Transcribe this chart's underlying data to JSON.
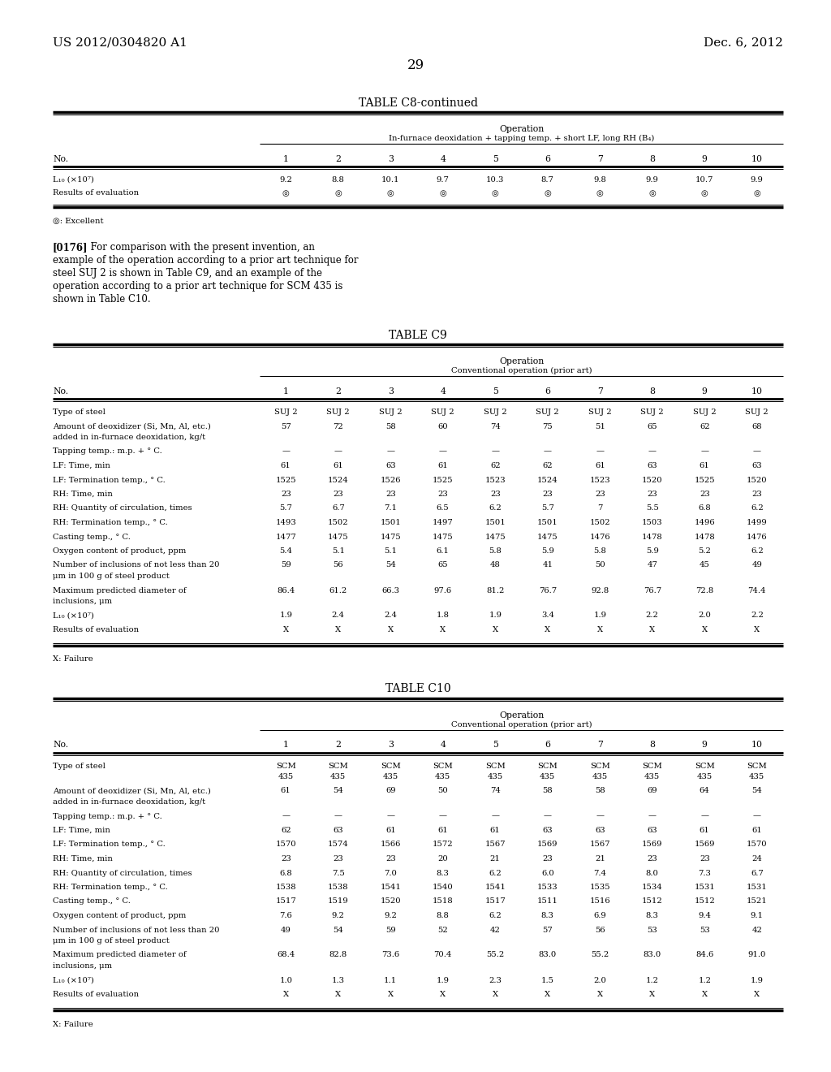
{
  "page_header_left": "US 2012/0304820 A1",
  "page_header_right": "Dec. 6, 2012",
  "page_number": "29",
  "table_c8": {
    "title": "TABLE C8-continued",
    "operation_label": "Operation",
    "operation_sub": "In-furnace deoxidation + tapping temp. + short LF, long RH (B₄)",
    "nos": [
      "1",
      "2",
      "3",
      "4",
      "5",
      "6",
      "7",
      "8",
      "9",
      "10"
    ],
    "rows": [
      {
        "label": "L₁₀ (×10⁷)",
        "values": [
          "9.2",
          "8.8",
          "10.1",
          "9.7",
          "10.3",
          "8.7",
          "9.8",
          "9.9",
          "10.7",
          "9.9"
        ]
      },
      {
        "label": "Results of evaluation",
        "values": [
          "◎",
          "◎",
          "◎",
          "◎",
          "◎",
          "◎",
          "◎",
          "◎",
          "◎",
          "◎"
        ]
      }
    ],
    "footnote": "◎: Excellent"
  },
  "paragraph_lines": [
    {
      "bold": "[0176]",
      "rest": "  For comparison with the present invention, an"
    },
    {
      "bold": "",
      "rest": "example of the operation according to a prior art technique for"
    },
    {
      "bold": "",
      "rest": "steel SUJ 2 is shown in Table C9, and an example of the"
    },
    {
      "bold": "",
      "rest": "operation according to a prior art technique for SCM 435 is"
    },
    {
      "bold": "",
      "rest": "shown in Table C10."
    }
  ],
  "table_c9": {
    "title": "TABLE C9",
    "operation_label": "Operation",
    "operation_sub": "Conventional operation (prior art)",
    "nos": [
      "1",
      "2",
      "3",
      "4",
      "5",
      "6",
      "7",
      "8",
      "9",
      "10"
    ],
    "rows": [
      {
        "label": "Type of steel",
        "values": [
          "SUJ 2",
          "SUJ 2",
          "SUJ 2",
          "SUJ 2",
          "SUJ 2",
          "SUJ 2",
          "SUJ 2",
          "SUJ 2",
          "SUJ 2",
          "SUJ 2"
        ]
      },
      {
        "label": "Amount of deoxidizer (Si, Mn, Al, etc.)\nadded in in-furnace deoxidation, kg/t",
        "values": [
          "57",
          "72",
          "58",
          "60",
          "74",
          "75",
          "51",
          "65",
          "62",
          "68"
        ]
      },
      {
        "label": "Tapping temp.: m.p. + ° C.",
        "values": [
          "—",
          "—",
          "—",
          "—",
          "—",
          "—",
          "—",
          "—",
          "—",
          "—"
        ]
      },
      {
        "label": "LF: Time, min",
        "values": [
          "61",
          "61",
          "63",
          "61",
          "62",
          "62",
          "61",
          "63",
          "61",
          "63"
        ]
      },
      {
        "label": "LF: Termination temp., ° C.",
        "values": [
          "1525",
          "1524",
          "1526",
          "1525",
          "1523",
          "1524",
          "1523",
          "1520",
          "1525",
          "1520"
        ]
      },
      {
        "label": "RH: Time, min",
        "values": [
          "23",
          "23",
          "23",
          "23",
          "23",
          "23",
          "23",
          "23",
          "23",
          "23"
        ]
      },
      {
        "label": "RH: Quantity of circulation, times",
        "values": [
          "5.7",
          "6.7",
          "7.1",
          "6.5",
          "6.2",
          "5.7",
          "7",
          "5.5",
          "6.8",
          "6.2"
        ]
      },
      {
        "label": "RH: Termination temp., ° C.",
        "values": [
          "1493",
          "1502",
          "1501",
          "1497",
          "1501",
          "1501",
          "1502",
          "1503",
          "1496",
          "1499"
        ]
      },
      {
        "label": "Casting temp., ° C.",
        "values": [
          "1477",
          "1475",
          "1475",
          "1475",
          "1475",
          "1475",
          "1476",
          "1478",
          "1478",
          "1476"
        ]
      },
      {
        "label": "Oxygen content of product, ppm",
        "values": [
          "5.4",
          "5.1",
          "5.1",
          "6.1",
          "5.8",
          "5.9",
          "5.8",
          "5.9",
          "5.2",
          "6.2"
        ]
      },
      {
        "label": "Number of inclusions of not less than 20\nμm in 100 g of steel product",
        "values": [
          "59",
          "56",
          "54",
          "65",
          "48",
          "41",
          "50",
          "47",
          "45",
          "49"
        ]
      },
      {
        "label": "Maximum predicted diameter of\ninclusions, μm",
        "values": [
          "86.4",
          "61.2",
          "66.3",
          "97.6",
          "81.2",
          "76.7",
          "92.8",
          "76.7",
          "72.8",
          "74.4"
        ]
      },
      {
        "label": "L₁₀ (×10⁷)",
        "values": [
          "1.9",
          "2.4",
          "2.4",
          "1.8",
          "1.9",
          "3.4",
          "1.9",
          "2.2",
          "2.0",
          "2.2"
        ]
      },
      {
        "label": "Results of evaluation",
        "values": [
          "X",
          "X",
          "X",
          "X",
          "X",
          "X",
          "X",
          "X",
          "X",
          "X"
        ]
      }
    ],
    "footnote": "X: Failure"
  },
  "table_c10": {
    "title": "TABLE C10",
    "operation_label": "Operation",
    "operation_sub": "Conventional operation (prior art)",
    "nos": [
      "1",
      "2",
      "3",
      "4",
      "5",
      "6",
      "7",
      "8",
      "9",
      "10"
    ],
    "rows": [
      {
        "label": "Type of steel",
        "values": [
          "SCM\n435",
          "SCM\n435",
          "SCM\n435",
          "SCM\n435",
          "SCM\n435",
          "SCM\n435",
          "SCM\n435",
          "SCM\n435",
          "SCM\n435",
          "SCM\n435"
        ]
      },
      {
        "label": "Amount of deoxidizer (Si, Mn, Al, etc.)\nadded in in-furnace deoxidation, kg/t",
        "values": [
          "61",
          "54",
          "69",
          "50",
          "74",
          "58",
          "58",
          "69",
          "64",
          "54"
        ]
      },
      {
        "label": "Tapping temp.: m.p. + ° C.",
        "values": [
          "—",
          "—",
          "—",
          "—",
          "—",
          "—",
          "—",
          "—",
          "—",
          "—"
        ]
      },
      {
        "label": "LF: Time, min",
        "values": [
          "62",
          "63",
          "61",
          "61",
          "61",
          "63",
          "63",
          "63",
          "61",
          "61"
        ]
      },
      {
        "label": "LF: Termination temp., ° C.",
        "values": [
          "1570",
          "1574",
          "1566",
          "1572",
          "1567",
          "1569",
          "1567",
          "1569",
          "1569",
          "1570"
        ]
      },
      {
        "label": "RH: Time, min",
        "values": [
          "23",
          "23",
          "23",
          "20",
          "21",
          "23",
          "21",
          "23",
          "23",
          "24"
        ]
      },
      {
        "label": "RH: Quantity of circulation, times",
        "values": [
          "6.8",
          "7.5",
          "7.0",
          "8.3",
          "6.2",
          "6.0",
          "7.4",
          "8.0",
          "7.3",
          "6.7"
        ]
      },
      {
        "label": "RH: Termination temp., ° C.",
        "values": [
          "1538",
          "1538",
          "1541",
          "1540",
          "1541",
          "1533",
          "1535",
          "1534",
          "1531",
          "1531"
        ]
      },
      {
        "label": "Casting temp., ° C.",
        "values": [
          "1517",
          "1519",
          "1520",
          "1518",
          "1517",
          "1511",
          "1516",
          "1512",
          "1512",
          "1521"
        ]
      },
      {
        "label": "Oxygen content of product, ppm",
        "values": [
          "7.6",
          "9.2",
          "9.2",
          "8.8",
          "6.2",
          "8.3",
          "6.9",
          "8.3",
          "9.4",
          "9.1"
        ]
      },
      {
        "label": "Number of inclusions of not less than 20\nμm in 100 g of steel product",
        "values": [
          "49",
          "54",
          "59",
          "52",
          "42",
          "57",
          "56",
          "53",
          "53",
          "42"
        ]
      },
      {
        "label": "Maximum predicted diameter of\ninclusions, μm",
        "values": [
          "68.4",
          "82.8",
          "73.6",
          "70.4",
          "55.2",
          "83.0",
          "55.2",
          "83.0",
          "84.6",
          "91.0"
        ]
      },
      {
        "label": "L₁₀ (×10⁷)",
        "values": [
          "1.0",
          "1.3",
          "1.1",
          "1.9",
          "2.3",
          "1.5",
          "2.0",
          "1.2",
          "1.2",
          "1.9"
        ]
      },
      {
        "label": "Results of evaluation",
        "values": [
          "X",
          "X",
          "X",
          "X",
          "X",
          "X",
          "X",
          "X",
          "X",
          "X"
        ]
      }
    ],
    "footnote": "X: Failure"
  }
}
